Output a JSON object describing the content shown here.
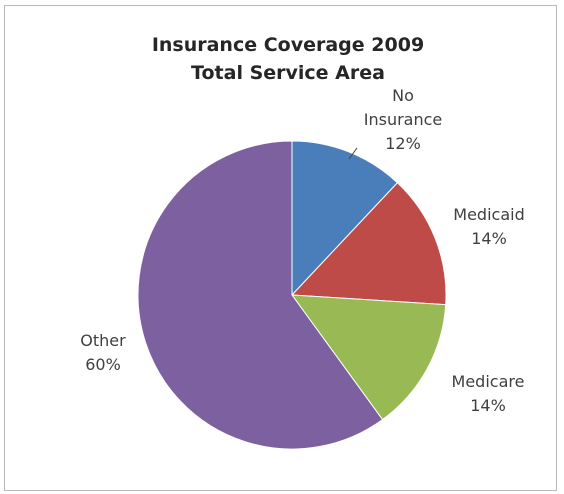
{
  "chart_data": {
    "type": "pie",
    "title": [
      "Insurance Coverage 2009",
      "Total Service Area"
    ],
    "slices": [
      {
        "label": [
          "No",
          "Insurance"
        ],
        "value_label": "12%",
        "value": 12,
        "color": "#4a7ebb"
      },
      {
        "label": [
          "Medicaid"
        ],
        "value_label": "14%",
        "value": 14,
        "color": "#be4b48"
      },
      {
        "label": [
          "Medicare"
        ],
        "value_label": "14%",
        "value": 14,
        "color": "#98b954"
      },
      {
        "label": [
          "Other"
        ],
        "value_label": "60%",
        "value": 60,
        "color": "#7d60a0"
      }
    ],
    "legend": "none",
    "data_labels": "outside"
  }
}
